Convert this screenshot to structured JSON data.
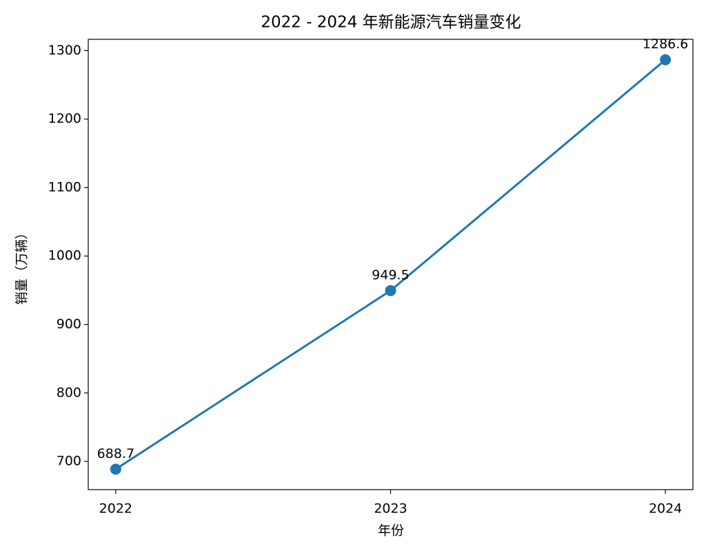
{
  "chart_data": {
    "type": "line",
    "title": "2022 - 2024 年新能源汽车销量变化",
    "x_label": "年份",
    "y_label": "销量（万辆）",
    "x": [
      2022,
      2023,
      2024
    ],
    "values": [
      688.7,
      949.5,
      1286.6
    ],
    "color": "#1f77b4",
    "xlim": [
      2021.9,
      2024.1
    ],
    "xticks": [
      2022,
      2023,
      2024
    ],
    "ylim": [
      658.8,
      1316.5
    ],
    "yticks": [
      700,
      800,
      900,
      1000,
      1100,
      1200,
      1300
    ],
    "grid": false,
    "markers": true,
    "data_labels": true
  }
}
